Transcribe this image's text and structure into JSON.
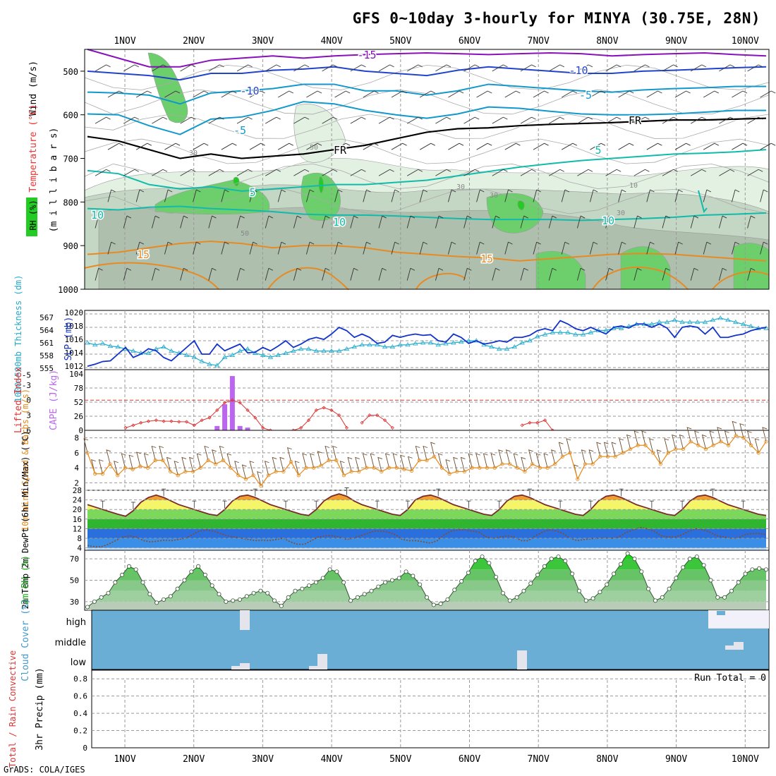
{
  "title": "GFS 0~10day 3-hourly for MINYA (30.75E, 28N)",
  "credit": "GrADS: COLA/IGES",
  "run_total_label": "Run Total = 0",
  "colors": {
    "rh_light": "#e3f1e3",
    "rh_mid": "#c4d6c4",
    "rh_dark": "#aebfae",
    "rh_green": "#6ccf6c",
    "rh_bright": "#22cc22",
    "t_purple": "#8811bb",
    "t_blue": "#2244cc",
    "t_sky": "#1199cc",
    "t_teal": "#11bbaa",
    "t_orange": "#e88a22",
    "slp": "#1133cc",
    "thick": "#22aacc",
    "lifted": "#dd3333",
    "cape": "#bb66ee",
    "wind": "#e68a1a",
    "cloud": "#6aaed6",
    "cloud_gap": "#e4e4ec"
  },
  "chart_data": [
    {
      "type": "contour-profile",
      "x_labels": [
        "1NOV",
        "2NOV",
        "3NOV",
        "4NOV",
        "5NOV",
        "6NOV",
        "7NOV",
        "8NOV",
        "9NOV",
        "10NOV"
      ],
      "ylabel_parts": [
        "Wind (m/s)",
        "Temperature (°C)",
        "RH (%)"
      ],
      "ylabel2": "(m i l l i b a r s)",
      "yticks": [
        500,
        600,
        700,
        800,
        900,
        1000
      ],
      "ylim": [
        450,
        1000
      ],
      "temperature_contours": [
        {
          "label": "-15",
          "level": -15,
          "values": [
            450,
            470,
            490,
            490,
            475,
            470,
            465,
            470,
            465,
            462,
            460,
            458,
            460,
            462,
            460,
            458,
            460,
            465,
            462,
            460,
            458,
            462,
            465
          ]
        },
        {
          "label": "-10",
          "level": -10,
          "values": [
            500,
            505,
            510,
            520,
            505,
            505,
            498,
            495,
            490,
            500,
            505,
            510,
            498,
            490,
            495,
            500,
            505,
            505,
            500,
            498,
            495,
            492,
            490
          ]
        },
        {
          "label": "-5",
          "level": -5,
          "values": [
            548,
            550,
            555,
            575,
            550,
            545,
            540,
            530,
            530,
            545,
            545,
            555,
            545,
            530,
            535,
            540,
            545,
            548,
            543,
            540,
            538,
            535,
            535
          ]
        },
        {
          "label": "-5",
          "level": -5,
          "values": [
            598,
            600,
            625,
            645,
            610,
            605,
            590,
            570,
            575,
            590,
            600,
            608,
            598,
            582,
            585,
            592,
            598,
            600,
            600,
            598,
            594,
            590,
            590
          ]
        },
        {
          "label": "FR",
          "level": 0,
          "values": [
            650,
            660,
            680,
            700,
            690,
            700,
            695,
            690,
            680,
            670,
            655,
            640,
            632,
            630,
            625,
            622,
            620,
            618,
            615,
            612,
            612,
            610,
            608
          ]
        },
        {
          "label": "5",
          "level": 5,
          "values": [
            728,
            735,
            760,
            770,
            765,
            775,
            770,
            765,
            760,
            760,
            755,
            750,
            740,
            730,
            720,
            712,
            705,
            700,
            695,
            690,
            688,
            685,
            680
          ]
        },
        {
          "label": "10",
          "level": 10,
          "values": [
            815,
            818,
            812,
            810,
            815,
            818,
            822,
            828,
            830,
            830,
            832,
            835,
            838,
            840,
            840,
            840,
            842,
            840,
            838,
            835,
            830,
            828,
            825
          ]
        },
        {
          "label": "15",
          "level": 15,
          "values": [
            920,
            915,
            905,
            895,
            890,
            895,
            905,
            900,
            900,
            905,
            915,
            920,
            925,
            928,
            935,
            930,
            925,
            920,
            918,
            920,
            925,
            930,
            935
          ]
        }
      ],
      "temperature_labels": [
        "-15",
        "-10",
        "-10",
        "-5",
        "-5",
        "FR",
        "FR",
        "-5",
        "5",
        "5",
        "10",
        "10",
        "10",
        "15",
        "15"
      ],
      "rh_labels": [
        "30",
        "50",
        "30",
        "50",
        "30",
        "10",
        "30"
      ]
    },
    {
      "type": "line",
      "title": "SLP / 1000-500mb Thickness",
      "ylabel_left": "1000~500mb Thickness (dm)",
      "ylabel_right": "SLP (mb)",
      "yticks_left": [
        "567",
        "564",
        "561",
        "558",
        "555"
      ],
      "yticks_right": [
        "1020",
        "1018",
        "1016",
        "1014",
        "1012"
      ],
      "series": [
        {
          "name": "SLP (mb)",
          "ylim": [
            1012,
            1020
          ],
          "values": [
            1012.2,
            1012.5,
            1012.9,
            1013.0,
            1014.0,
            1015.0,
            1013.5,
            1014.0,
            1014.8,
            1014.5,
            1013.5,
            1013.0,
            1014.0,
            1015.0,
            1016.0,
            1014.0,
            1014.0,
            1015.5,
            1014.5,
            1015.0,
            1015.5,
            1014.2,
            1014.3,
            1015.0,
            1014.5,
            1015.2,
            1016.0,
            1015.0,
            1015.5,
            1016.2,
            1016.5,
            1016.2,
            1017.0,
            1018.0,
            1017.5,
            1016.5,
            1017.0,
            1016.5,
            1015.6,
            1015.8,
            1016.8,
            1016.5,
            1016.8,
            1017.0,
            1016.8,
            1016.9,
            1016.0,
            1015.8,
            1017.0,
            1016.5,
            1015.6,
            1016.0,
            1015.5,
            1015.7,
            1016.0,
            1015.8,
            1016.5,
            1016.5,
            1016.8,
            1017.5,
            1017.8,
            1017.5,
            1019.0,
            1018.5,
            1017.8,
            1017.5,
            1018.0,
            1017.5,
            1017.0,
            1018.0,
            1018.2,
            1017.9,
            1018.5,
            1018.5,
            1018.0,
            1018.5,
            1017.9,
            1016.5,
            1018.0,
            1018.2,
            1018.0,
            1017.0,
            1018.0,
            1016.5,
            1016.5,
            1016.8,
            1017.0,
            1017.5,
            1017.8,
            1018.0
          ]
        },
        {
          "name": "1000-500mb Thickness (dm)",
          "ylim": [
            555,
            568
          ],
          "values": [
            561.0,
            560.5,
            560.8,
            560.2,
            560.0,
            559.5,
            559.0,
            558.5,
            558.5,
            559.5,
            560.0,
            559.0,
            558.5,
            558.0,
            557.5,
            556.5,
            555.8,
            555.5,
            557.5,
            558.0,
            559.0,
            559.5,
            558.5,
            558.0,
            557.5,
            558.0,
            558.5,
            559.0,
            559.5,
            559.5,
            559.0,
            559.0,
            559.0,
            559.0,
            559.5,
            560.0,
            560.5,
            560.5,
            560.5,
            560.0,
            560.0,
            560.5,
            560.5,
            560.8,
            561.0,
            561.0,
            560.5,
            560.8,
            561.0,
            561.2,
            561.5,
            561.5,
            560.5,
            560.0,
            559.5,
            559.5,
            560.0,
            561.0,
            561.5,
            562.5,
            563.0,
            563.5,
            563.5,
            563.5,
            563.0,
            563.0,
            563.5,
            564.0,
            564.0,
            564.5,
            564.5,
            565.0,
            565.5,
            565.5,
            565.5,
            566.0,
            566.0,
            566.5,
            566.0,
            566.0,
            566.0,
            566.0,
            566.5,
            567.0,
            566.5,
            566.0,
            565.5,
            565.0,
            564.5,
            564.5
          ]
        }
      ]
    },
    {
      "type": "line+bar",
      "title": "Lifted Index / CAPE",
      "ylabel_left": "Lifted Index",
      "ylabel_right": "CAPE (J/kg)",
      "yticks_left": [
        "-5",
        "-3",
        "0",
        "3",
        "6"
      ],
      "yticks_right": [
        "104",
        "78",
        "52",
        "26",
        "0"
      ],
      "lifted_index": [
        null,
        null,
        null,
        null,
        null,
        5.5,
        5.0,
        4.5,
        4.2,
        4.0,
        4.2,
        4.2,
        4.3,
        4.3,
        5.0,
        4.0,
        3.5,
        2.0,
        0.5,
        0.0,
        0.5,
        2.0,
        3.5,
        5.5,
        6.0,
        null,
        null,
        6.0,
        5.5,
        4.0,
        2.0,
        1.5,
        2.0,
        3.0,
        5.5,
        null,
        4.5,
        3.0,
        3.0,
        4.0,
        5.5,
        null,
        null,
        null,
        null,
        null,
        null,
        null,
        null,
        null,
        null,
        null,
        null,
        null,
        null,
        null,
        null,
        5.0,
        4.5,
        4.5,
        4.0,
        6.0
      ],
      "cape": [
        {
          "index": 17,
          "value": 8
        },
        {
          "index": 18,
          "value": 48
        },
        {
          "index": 19,
          "value": 100
        },
        {
          "index": 20,
          "value": 8
        },
        {
          "index": 21,
          "value": 5
        }
      ],
      "ylim_li": [
        -5.5,
        6
      ],
      "ylim_cape": [
        0,
        104
      ]
    },
    {
      "type": "line",
      "title": "10m Wind Speed & Barbs",
      "ylabel": "10m Wind Speed & Barbs (m/s)",
      "yticks": [
        "8",
        "6",
        "4",
        "2"
      ],
      "ylim": [
        1,
        9
      ],
      "values": [
        6.0,
        3.2,
        3.2,
        4.5,
        3.0,
        4.0,
        3.8,
        4.2,
        4.0,
        5.0,
        5.0,
        3.5,
        3.0,
        3.5,
        3.5,
        4.0,
        5.0,
        4.5,
        5.0,
        4.0,
        3.0,
        2.5,
        3.0,
        1.6,
        3.0,
        3.5,
        3.5,
        4.8,
        3.0,
        4.0,
        4.0,
        4.3,
        5.0,
        5.0,
        3.0,
        3.5,
        3.5,
        4.0,
        4.0,
        3.5,
        4.0,
        4.0,
        3.8,
        3.6,
        5.0,
        5.0,
        5.5,
        4.0,
        3.2,
        3.5,
        3.5,
        4.0,
        4.0,
        4.0,
        4.0,
        4.5,
        4.5,
        4.0,
        3.5,
        4.5,
        4.0,
        4.0,
        4.5,
        5.5,
        6.0,
        2.5,
        4.5,
        4.5,
        5.5,
        5.5,
        5.5,
        6.0,
        6.5,
        7.0,
        7.0,
        6.0,
        4.5,
        6.0,
        6.5,
        6.5,
        7.5,
        7.0,
        6.5,
        7.0,
        7.5,
        7.0,
        8.3,
        8.0,
        7.0,
        6.0,
        7.5
      ]
    },
    {
      "type": "area",
      "title": "2m Temp / 2m DewPt",
      "ylabel": "2m Temp 2m DewPt (6hr Min/Max) (°C)",
      "yticks": [
        "28",
        "24",
        "20",
        "16",
        "12",
        "8",
        "4"
      ],
      "ylim": [
        3,
        28
      ],
      "temp": [
        22.0,
        21.0,
        20.0,
        19.0,
        18.0,
        17.2,
        19.5,
        23.0,
        25.0,
        26.0,
        25.0,
        23.5,
        22.0,
        21.0,
        20.0,
        19.0,
        18.0,
        17.5,
        20.0,
        23.5,
        25.5,
        26.0,
        25.0,
        23.5,
        22.0,
        21.0,
        20.0,
        19.0,
        18.0,
        17.5,
        20.0,
        23.5,
        25.5,
        26.5,
        25.5,
        23.5,
        22.0,
        21.0,
        20.0,
        19.0,
        18.0,
        17.5,
        20.0,
        24.0,
        25.5,
        26.0,
        25.0,
        23.5,
        22.0,
        21.0,
        20.0,
        19.0,
        18.0,
        17.5,
        20.0,
        23.5,
        25.5,
        26.0,
        25.0,
        23.5,
        22.0,
        21.0,
        20.0,
        19.0,
        18.0,
        17.5,
        20.0,
        23.5,
        25.5,
        26.0,
        25.0,
        23.5,
        22.0,
        21.0,
        20.0,
        19.0,
        18.0,
        17.5,
        20.0,
        23.5,
        25.5,
        26.0,
        25.0,
        23.5,
        22.0,
        21.0,
        20.0,
        19.0,
        18.0,
        17.5
      ],
      "dewpoint": [
        5.0,
        4.5,
        4.5,
        5.5,
        7.0,
        8.5,
        9.0,
        8.5,
        7.0,
        6.5,
        6.8,
        7.2,
        7.0,
        7.5,
        8.0,
        9.5,
        11.0,
        11.5,
        11.0,
        10.0,
        9.0,
        8.5,
        8.0,
        7.5,
        7.0,
        7.2,
        7.0,
        7.5,
        8.0,
        6.5,
        5.5,
        5.5,
        7.0,
        8.5,
        9.0,
        9.0,
        8.5,
        7.5,
        8.0,
        9.0,
        10.0,
        11.0,
        11.0,
        10.5,
        9.5,
        7.5,
        7.0,
        7.0,
        6.5,
        6.0,
        7.0,
        9.5,
        11.0,
        11.5,
        11.5,
        11.0,
        10.5,
        8.5,
        8.0,
        8.5,
        9.0,
        8.5,
        7.0,
        7.0,
        9.0,
        10.5,
        11.5,
        11.0,
        10.0,
        8.0,
        7.0,
        7.5,
        7.8,
        8.0,
        8.2,
        8.0,
        8.5,
        10.5,
        11.5,
        12.5,
        12.0,
        11.0,
        9.0,
        8.5,
        8.5,
        9.5,
        11.0,
        12.0,
        11.5,
        10.5,
        9.0,
        8.5,
        8.0,
        8.2,
        9.5,
        10.0,
        10.0,
        9.5
      ]
    },
    {
      "type": "area",
      "title": "2m RH",
      "ylabel": "2m RH (%)",
      "yticks": [
        "70",
        "50",
        "30"
      ],
      "ylim": [
        22,
        78
      ],
      "values": [
        25,
        30,
        34,
        38,
        48,
        55,
        63,
        60,
        48,
        37,
        29,
        32,
        35,
        42,
        50,
        58,
        63,
        55,
        45,
        37,
        30,
        31,
        32,
        35,
        38,
        40,
        38,
        31,
        26,
        34,
        40,
        42,
        45,
        48,
        52,
        60,
        58,
        48,
        31,
        34,
        37,
        40,
        44,
        48,
        50,
        52,
        58,
        54,
        46,
        34,
        27,
        28,
        32,
        41,
        49,
        57,
        68,
        72,
        66,
        53,
        38,
        31,
        34,
        40,
        47,
        55,
        63,
        70,
        72,
        68,
        56,
        40,
        31,
        33,
        39,
        46,
        56,
        65,
        75,
        70,
        58,
        42,
        31,
        34,
        42,
        52,
        62,
        70,
        72,
        64,
        50,
        34,
        34,
        40,
        48,
        56,
        60,
        61,
        60
      ]
    },
    {
      "type": "heatmap",
      "title": "Cloud Cover",
      "ylabel": "Cloud Cover (%)",
      "rows": [
        "high",
        "middle",
        "low"
      ]
    },
    {
      "type": "bar",
      "title": "3hr Precip",
      "ylabel_left": "Total / Rain Convective",
      "ylabel": "3hr Precip (mm)",
      "yticks": [
        "0.8",
        "0.6",
        "0.4",
        "0.2",
        "0"
      ],
      "ylim": [
        0,
        0.9
      ],
      "run_total": 0
    }
  ]
}
